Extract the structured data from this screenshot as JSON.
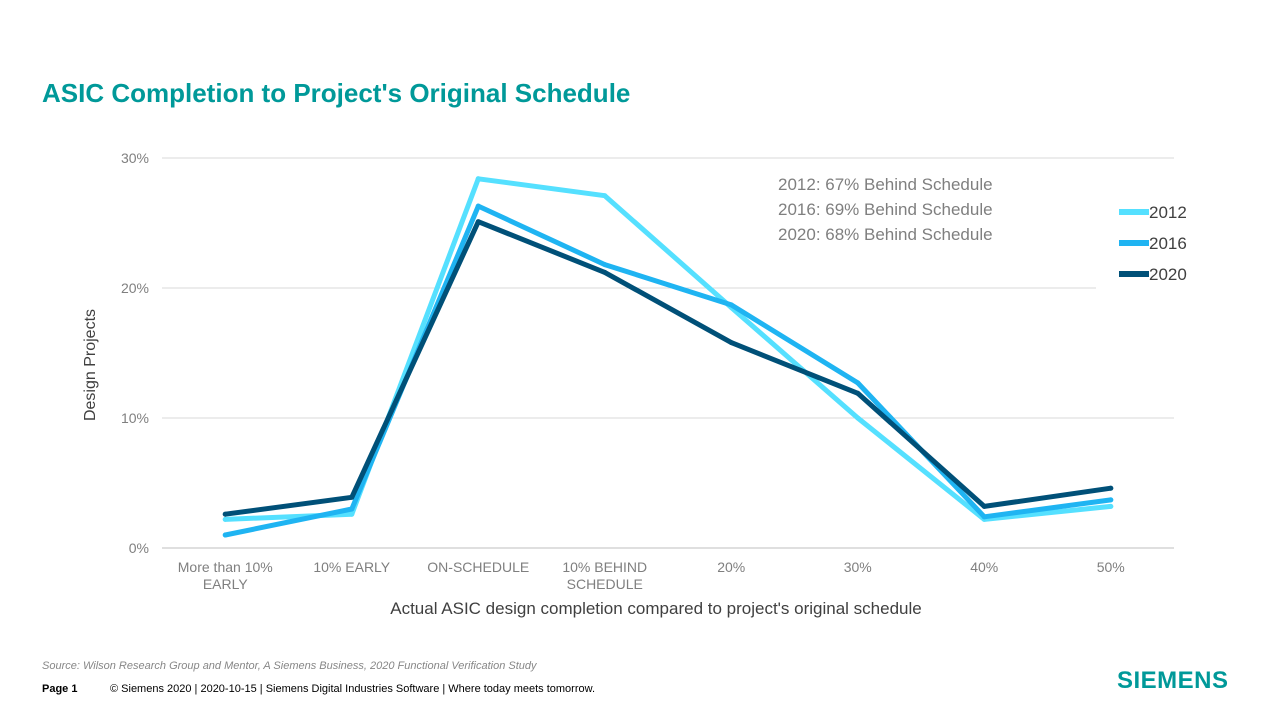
{
  "slide": {
    "title": "ASIC Completion to Project's Original Schedule",
    "source": "Source:  Wilson Research Group and Mentor,  A Siemens Business, 2020 Functional Verification Study",
    "page_label": "Page 1",
    "footer_text": "© Siemens 2020 | 2020-10-15 | Siemens Digital Industries Software | Where today meets tomorrow.",
    "logo": "SIEMENS",
    "brand_color": "#009999"
  },
  "chart_data": {
    "type": "line",
    "categories": [
      [
        "More than 10%",
        "EARLY"
      ],
      [
        "10% EARLY"
      ],
      [
        "ON-SCHEDULE"
      ],
      [
        "10% BEHIND",
        "SCHEDULE"
      ],
      [
        "20%"
      ],
      [
        "30%"
      ],
      [
        "40%"
      ],
      [
        "50%"
      ]
    ],
    "series": [
      {
        "name": "2012",
        "color": "#55E0FF",
        "values": [
          2.2,
          2.6,
          28.4,
          27.1,
          18.5,
          10.0,
          2.2,
          3.2
        ]
      },
      {
        "name": "2016",
        "color": "#1FB4F2",
        "values": [
          1.0,
          3.0,
          26.3,
          21.8,
          18.7,
          12.7,
          2.4,
          3.7
        ]
      },
      {
        "name": "2020",
        "color": "#005078",
        "values": [
          2.6,
          3.9,
          25.1,
          21.2,
          15.8,
          11.9,
          3.2,
          4.6
        ]
      }
    ],
    "ylim": [
      0,
      30
    ],
    "yticks": [
      "0%",
      "10%",
      "20%",
      "30%"
    ],
    "ytick_values": [
      0,
      10,
      20,
      30
    ],
    "xlabel": "Actual ASIC design completion compared to project's original schedule",
    "ylabel": "Design Projects",
    "grid": true,
    "legend": "right",
    "annotations": [
      "2012: 67% Behind Schedule",
      "2016: 69% Behind Schedule",
      "2020: 68% Behind Schedule"
    ]
  }
}
